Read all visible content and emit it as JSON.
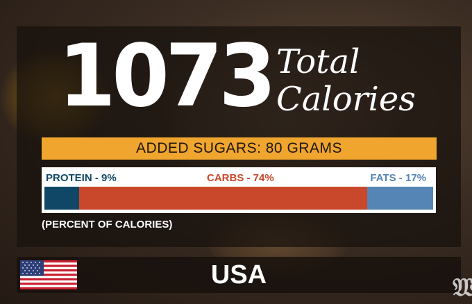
{
  "calories": {
    "number": "1073",
    "label_line1": "Total",
    "label_line2": "Calories"
  },
  "sugars": {
    "text": "ADDED SUGARS: 80 GRAMS",
    "color": "#efa52e"
  },
  "macros": {
    "protein": {
      "label": "PROTEIN - 9%",
      "percent": 9,
      "color": "#104766"
    },
    "carbs": {
      "label": "CARBS - 74%",
      "percent": 74,
      "color": "#c9482b"
    },
    "fats": {
      "label": "FATS - 17%",
      "percent": 17,
      "color": "#5585b5"
    }
  },
  "footnote": "(PERCENT OF CALORIES)",
  "country": {
    "name": "USA",
    "flag_icon": "us-flag-icon"
  },
  "logo": {
    "glyph": "𝔚",
    "icon": "washington-post-logo-icon"
  }
}
